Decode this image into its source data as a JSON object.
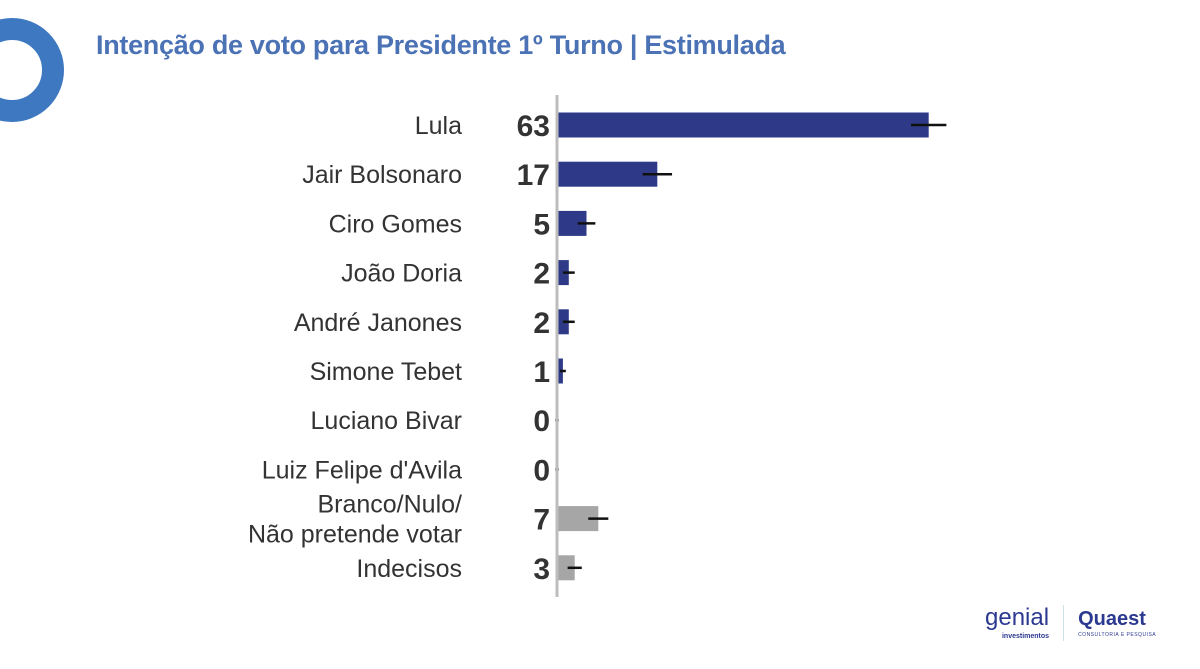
{
  "chart_data": {
    "type": "bar",
    "orientation": "horizontal",
    "title": "Intenção de voto para Presidente 1º Turno | Estimulada",
    "categories": [
      "Lula",
      "Jair Bolsonaro",
      "Ciro Gomes",
      "João Doria",
      "André Janones",
      "Simone Tebet",
      "Luciano Bivar",
      "Luiz Felipe d'Avila",
      "Branco/Nulo/\nNão pretende votar",
      "Indecisos"
    ],
    "values": [
      63,
      17,
      5,
      2,
      2,
      1,
      0,
      0,
      7,
      3
    ],
    "error_margin": [
      3,
      2.5,
      1.5,
      1,
      1,
      0.5,
      0.3,
      0.3,
      1.7,
      1.2
    ],
    "colors": [
      "#2e3a87",
      "#2e3a87",
      "#2e3a87",
      "#2e3a87",
      "#2e3a87",
      "#2e3a87",
      "#2e3a87",
      "#2e3a87",
      "#a6a6a6",
      "#a6a6a6"
    ],
    "xlim": [
      0,
      70
    ],
    "grid": false,
    "legend": "none"
  },
  "logos": {
    "genial": "genial",
    "genial_sub": "investimentos",
    "quaest": "Quaest",
    "quaest_sub": "CONSULTORIA E PESQUISA"
  }
}
